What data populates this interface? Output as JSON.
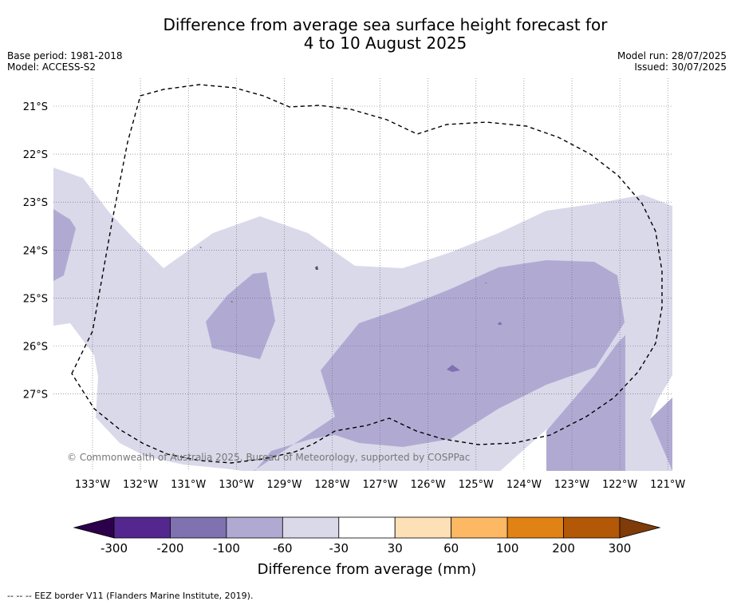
{
  "title_line1": "Difference from average sea surface height forecast for",
  "title_line2": "4 to 10 August 2025",
  "base_period": "Base period: 1981-2018",
  "model": "Model: ACCESS-S2",
  "model_run": "Model run: 28/07/2025",
  "issued": "Issued: 30/07/2025",
  "copyright": "© Commonwealth of Australia 2025, Bureau of Meteorology, supported by COSPPac",
  "footnote": "--  --  -- EEZ border V11 (Flanders Marine Institute, 2019).",
  "map": {
    "lat_labels": [
      "21°S",
      "22°S",
      "23°S",
      "24°S",
      "25°S",
      "26°S",
      "27°S"
    ],
    "lon_labels": [
      "133°W",
      "132°W",
      "131°W",
      "130°W",
      "129°W",
      "128°W",
      "127°W",
      "126°W",
      "125°W",
      "124°W",
      "123°W",
      "122°W",
      "121°W"
    ],
    "colors": {
      "band_-60_-30": "#d9d9ea",
      "band_-100_-60": "#b0aad3",
      "eez_border": "#000000"
    }
  },
  "colorbar": {
    "label": "Difference from average (mm)",
    "ticks": [
      "-300",
      "-200",
      "-100",
      "-60",
      "-30",
      "30",
      "60",
      "100",
      "200",
      "300"
    ],
    "colors": [
      "#54278f",
      "#8071b0",
      "#b0aad3",
      "#d9d9ea",
      "#ffffff",
      "#fee0b6",
      "#fdb863",
      "#e08214",
      "#b35806"
    ],
    "under_color": "#2d004b",
    "over_color": "#7f3b08"
  }
}
